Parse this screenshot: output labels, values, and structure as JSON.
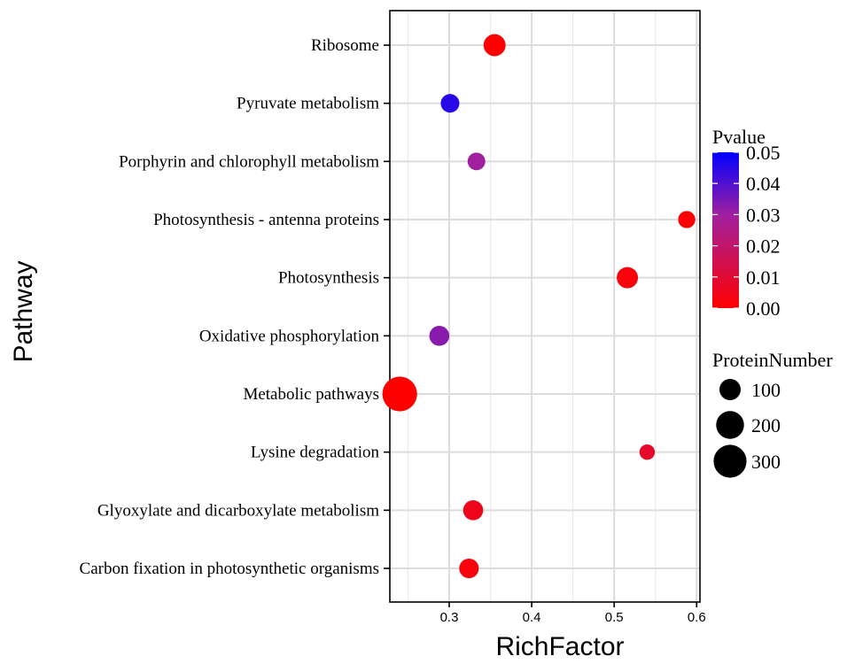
{
  "chart_data": {
    "type": "scatter",
    "xlabel": "RichFactor",
    "ylabel": "Pathway",
    "xlim": [
      0.228,
      0.604
    ],
    "xticks": [
      0.3,
      0.4,
      0.5,
      0.6
    ],
    "xtick_labels": [
      "0.3",
      "0.4",
      "0.5",
      "0.6"
    ],
    "grid": true,
    "categories": [
      "Ribosome",
      "Pyruvate metabolism",
      "Porphyrin and chlorophyll metabolism",
      "Photosynthesis - antenna proteins",
      "Photosynthesis",
      "Oxidative phosphorylation",
      "Metabolic pathways",
      "Lysine degradation",
      "Glyoxylate and dicarboxylate metabolism",
      "Carbon fixation in photosynthetic organisms"
    ],
    "points": [
      {
        "pathway": "Ribosome",
        "x": 0.355,
        "pvalue": 0.0,
        "protein_number": 110
      },
      {
        "pathway": "Pyruvate metabolism",
        "x": 0.301,
        "pvalue": 0.045,
        "protein_number": 70
      },
      {
        "pathway": "Porphyrin and chlorophyll metabolism",
        "x": 0.333,
        "pvalue": 0.03,
        "protein_number": 60
      },
      {
        "pathway": "Photosynthesis - antenna proteins",
        "x": 0.588,
        "pvalue": 0.001,
        "protein_number": 55
      },
      {
        "pathway": "Photosynthesis",
        "x": 0.516,
        "pvalue": 0.002,
        "protein_number": 100
      },
      {
        "pathway": "Oxidative phosphorylation",
        "x": 0.288,
        "pvalue": 0.033,
        "protein_number": 85
      },
      {
        "pathway": "Metabolic pathways",
        "x": 0.24,
        "pvalue": 0.0,
        "protein_number": 340
      },
      {
        "pathway": "Lysine degradation",
        "x": 0.54,
        "pvalue": 0.008,
        "protein_number": 40
      },
      {
        "pathway": "Glyoxylate and dicarboxylate metabolism",
        "x": 0.329,
        "pvalue": 0.005,
        "protein_number": 85
      },
      {
        "pathway": "Carbon fixation in photosynthetic organisms",
        "x": 0.324,
        "pvalue": 0.002,
        "protein_number": 80
      }
    ],
    "color_legend": {
      "title": "Pvalue",
      "low_color": "#ff0000",
      "mid_color": "#a020a0",
      "high_color": "#0000ff",
      "range": [
        0.0,
        0.05
      ],
      "ticks": [
        "0.00",
        "0.01",
        "0.02",
        "0.03",
        "0.04",
        "0.05"
      ]
    },
    "size_legend": {
      "title": "ProteinNumber",
      "values": [
        100,
        200,
        300
      ],
      "labels": [
        "100",
        "200",
        "300"
      ],
      "color": "#000000"
    }
  }
}
